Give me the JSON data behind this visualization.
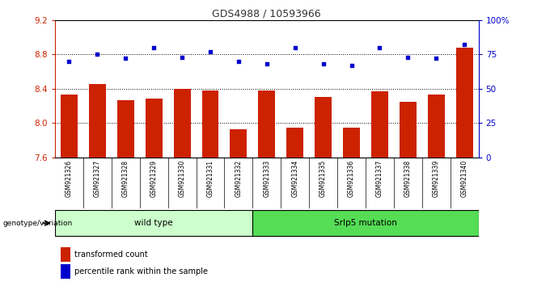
{
  "title": "GDS4988 / 10593966",
  "samples": [
    "GSM921326",
    "GSM921327",
    "GSM921328",
    "GSM921329",
    "GSM921330",
    "GSM921331",
    "GSM921332",
    "GSM921333",
    "GSM921334",
    "GSM921335",
    "GSM921336",
    "GSM921337",
    "GSM921338",
    "GSM921339",
    "GSM921340"
  ],
  "bar_values": [
    8.33,
    8.45,
    8.27,
    8.28,
    8.4,
    8.38,
    7.93,
    8.38,
    7.95,
    8.3,
    7.95,
    8.37,
    8.25,
    8.33,
    8.88
  ],
  "percentile_values": [
    70,
    75,
    72,
    80,
    73,
    77,
    70,
    68,
    80,
    68,
    67,
    80,
    73,
    72,
    82
  ],
  "bar_color": "#cc2200",
  "dot_color": "#0000cc",
  "ylim_left": [
    7.6,
    9.2
  ],
  "ylim_right": [
    0,
    100
  ],
  "yticks_left": [
    7.6,
    8.0,
    8.4,
    8.8,
    9.2
  ],
  "yticks_right": [
    0,
    25,
    50,
    75,
    100
  ],
  "ytick_labels_right": [
    "0",
    "25",
    "50",
    "75",
    "100%"
  ],
  "wild_type_count": 7,
  "group1_label": "wild type",
  "group2_label": "Srlp5 mutation",
  "group1_color": "#ccffcc",
  "group2_color": "#55dd55",
  "genotype_label": "genotype/variation",
  "legend1_label": "transformed count",
  "legend2_label": "percentile rank within the sample",
  "left_axis_color": "#cc2200",
  "right_axis_color": "#0000cc",
  "xtick_bg_color": "#cccccc"
}
